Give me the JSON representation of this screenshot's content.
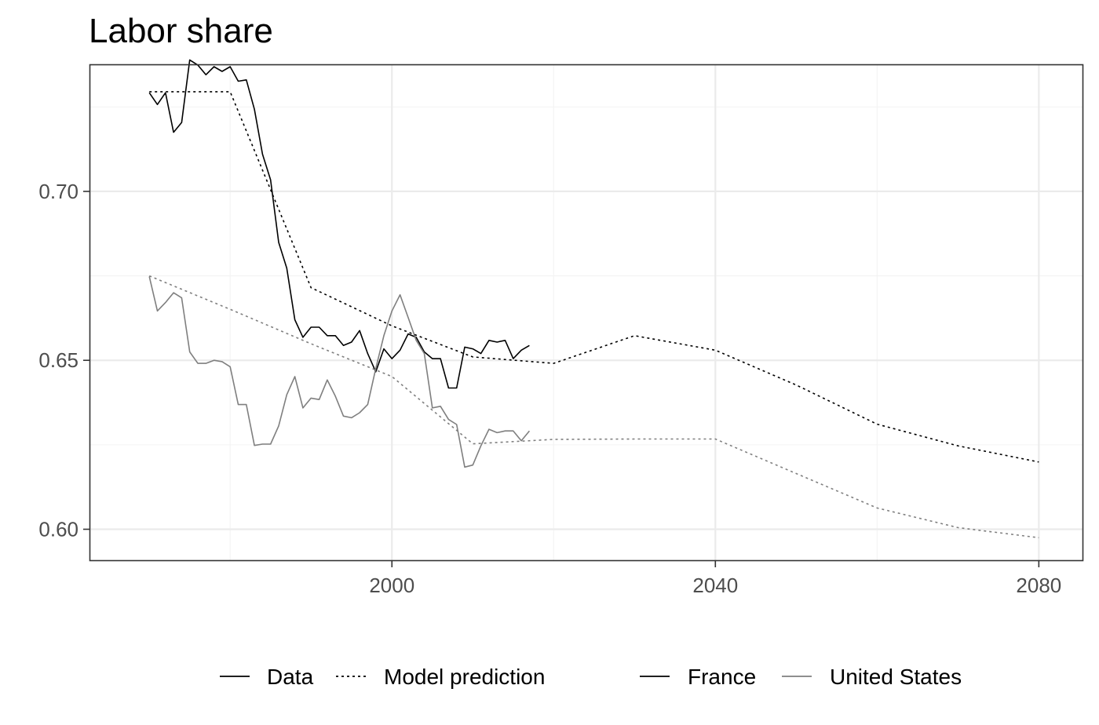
{
  "chart_data": {
    "type": "line",
    "title": "Labor share",
    "xlabel": "",
    "ylabel": "",
    "xlim": [
      1962.6,
      2085.5
    ],
    "ylim": [
      0.5906,
      0.7376
    ],
    "x_ticks": [
      2000,
      2040,
      2080
    ],
    "x_tick_labels": [
      "2000",
      "2040",
      "2080"
    ],
    "x_minor": [
      1980,
      2020,
      2060
    ],
    "y_ticks": [
      0.6,
      0.65,
      0.7
    ],
    "y_tick_labels": [
      "0.60",
      "0.65",
      "0.70"
    ],
    "y_minor": [
      0.625,
      0.675,
      0.725
    ],
    "grid": true,
    "legend_position": "bottom",
    "legend": {
      "linetype": [
        {
          "label": "Data",
          "dash": "solid"
        },
        {
          "label": "Model prediction",
          "dash": "dotted"
        }
      ],
      "colour": [
        {
          "label": "France",
          "color": "#000000"
        },
        {
          "label": "United States",
          "color": "#7f7f7f"
        }
      ]
    },
    "series": [
      {
        "name": "France",
        "type": "Data",
        "color": "#000000",
        "dash": "solid",
        "x": [
          1970,
          1971,
          1972,
          1973,
          1974,
          1975,
          1976,
          1977,
          1978,
          1979,
          1980,
          1981,
          1982,
          1983,
          1984,
          1985,
          1986,
          1987,
          1988,
          1989,
          1990,
          1991,
          1992,
          1993,
          1994,
          1995,
          1996,
          1997,
          1998,
          1999,
          2000,
          2001,
          2002,
          2003,
          2004,
          2005,
          2006,
          2007,
          2008,
          2009,
          2010,
          2011,
          2012,
          2013,
          2014,
          2015,
          2016,
          2017
        ],
        "y": [
          0.7292,
          0.7257,
          0.7292,
          0.7175,
          0.7204,
          0.7389,
          0.7374,
          0.7345,
          0.7369,
          0.7355,
          0.7369,
          0.7326,
          0.733,
          0.7243,
          0.711,
          0.7034,
          0.6849,
          0.6773,
          0.662,
          0.6568,
          0.6598,
          0.6598,
          0.6573,
          0.6573,
          0.6544,
          0.6554,
          0.6588,
          0.652,
          0.6466,
          0.6534,
          0.6505,
          0.653,
          0.6578,
          0.6568,
          0.6525,
          0.6505,
          0.6505,
          0.6418,
          0.6418,
          0.6539,
          0.6534,
          0.652,
          0.6559,
          0.6554,
          0.6559,
          0.6505,
          0.653,
          0.6544
        ]
      },
      {
        "name": "United States",
        "type": "Data",
        "color": "#7f7f7f",
        "dash": "solid",
        "x": [
          1970,
          1971,
          1972,
          1973,
          1974,
          1975,
          1976,
          1977,
          1978,
          1979,
          1980,
          1981,
          1982,
          1983,
          1984,
          1985,
          1986,
          1987,
          1988,
          1989,
          1990,
          1991,
          1992,
          1993,
          1994,
          1995,
          1996,
          1997,
          1998,
          1999,
          2000,
          2001,
          2002,
          2003,
          2004,
          2005,
          2006,
          2007,
          2008,
          2009,
          2010,
          2011,
          2012,
          2013,
          2014,
          2015,
          2016,
          2017
        ],
        "y": [
          0.6748,
          0.6646,
          0.6671,
          0.67,
          0.6685,
          0.6525,
          0.6491,
          0.6491,
          0.65,
          0.6496,
          0.6481,
          0.6369,
          0.6369,
          0.6248,
          0.6252,
          0.6252,
          0.6306,
          0.6398,
          0.6452,
          0.6359,
          0.6388,
          0.6384,
          0.6442,
          0.6394,
          0.6335,
          0.633,
          0.6345,
          0.6369,
          0.6476,
          0.6573,
          0.6646,
          0.6694,
          0.6627,
          0.6559,
          0.652,
          0.6359,
          0.6364,
          0.6325,
          0.631,
          0.6184,
          0.619,
          0.6247,
          0.6296,
          0.6286,
          0.6291,
          0.6291,
          0.6262,
          0.6291
        ]
      },
      {
        "name": "France",
        "type": "Model prediction",
        "color": "#000000",
        "dash": "dotted",
        "x": [
          1970,
          1980,
          1990,
          2000,
          2010,
          2020,
          2030,
          2040,
          2050,
          2060,
          2070,
          2080
        ],
        "y": [
          0.7295,
          0.7295,
          0.6715,
          0.6602,
          0.651,
          0.6491,
          0.6573,
          0.653,
          0.6427,
          0.6311,
          0.6247,
          0.6199
        ]
      },
      {
        "name": "United States",
        "type": "Model prediction",
        "color": "#7f7f7f",
        "dash": "dotted",
        "x": [
          1970,
          1980,
          1990,
          2000,
          2010,
          2020,
          2030,
          2040,
          2050,
          2060,
          2070,
          2080
        ],
        "y": [
          0.675,
          0.6651,
          0.6549,
          0.6452,
          0.6253,
          0.6266,
          0.6267,
          0.6267,
          0.6165,
          0.6063,
          0.6005,
          0.5975
        ]
      }
    ]
  }
}
